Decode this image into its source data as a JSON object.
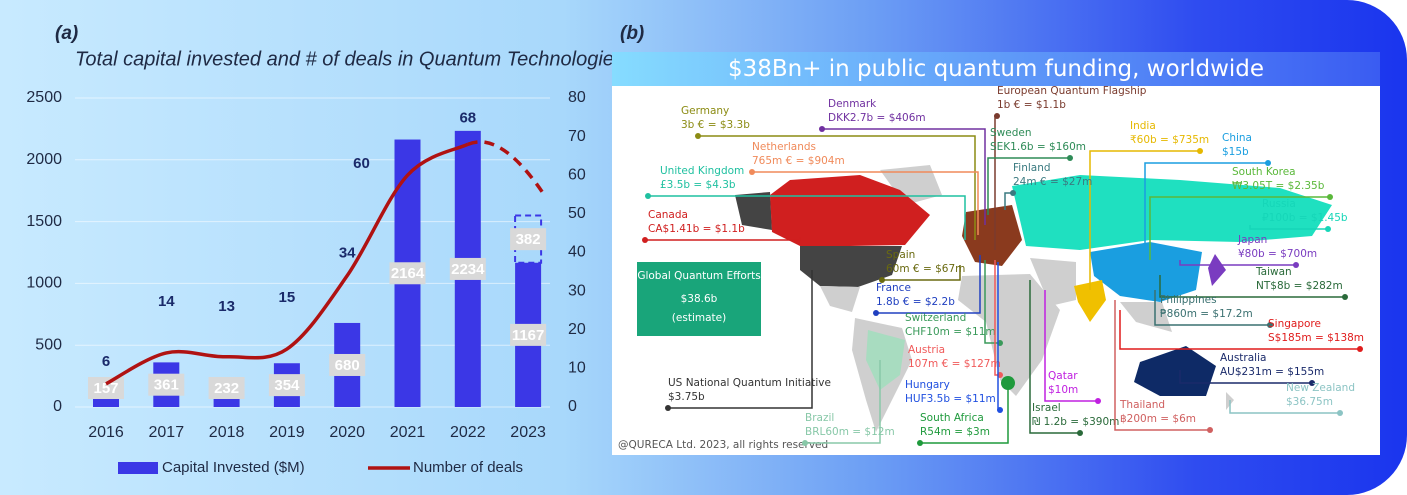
{
  "panel_a": {
    "label": "(a)",
    "chart_data": {
      "type": "bar_line",
      "title": "Total capital invested and # of deals in Quantum Technologies.",
      "categories": [
        "2016",
        "2017",
        "2018",
        "2019",
        "2020",
        "2021",
        "2022",
        "2023"
      ],
      "series": [
        {
          "name": "Capital Invested ($M)",
          "color": "#3b37e6",
          "values": [
            157,
            361,
            232,
            354,
            680,
            2164,
            2234,
            1167
          ],
          "projected_values": [
            null,
            null,
            null,
            null,
            null,
            null,
            null,
            382
          ]
        },
        {
          "name": "Number of deals",
          "color": "#b01212",
          "axis": "y2",
          "values": [
            6,
            14,
            13,
            15,
            34,
            60,
            68,
            56
          ],
          "value_labels": [
            "6",
            "14",
            "13",
            "15",
            "34",
            "60",
            "68",
            null
          ],
          "dashed_after": "2022"
        }
      ],
      "ylim": [
        0,
        2500
      ],
      "yticks": [
        0,
        500,
        1000,
        1500,
        2000,
        2500
      ],
      "y2lim": [
        0,
        80
      ],
      "y2ticks": [
        0,
        10,
        20,
        30,
        40,
        50,
        60,
        70,
        80
      ],
      "grid": true,
      "legend": "bottom"
    }
  },
  "panel_b": {
    "label": "(b)",
    "title": "$38Bn+ in public quantum funding, worldwide",
    "summary": {
      "label": "Global Quantum Efforts",
      "value": "$38.6b",
      "note": "(estimate)"
    },
    "funding": [
      {
        "name": "Germany",
        "amount": "3b € = $3.3b",
        "color": "#8c8c14"
      },
      {
        "name": "Denmark",
        "amount": "DKK2.7b = $406m",
        "color": "#7030a0"
      },
      {
        "name": "European Quantum Flagship",
        "amount": "1b € = $1.1b",
        "color": "#7a3b2e"
      },
      {
        "name": "Netherlands",
        "amount": "765m € = $904m",
        "color": "#f08a5a"
      },
      {
        "name": "Sweden",
        "amount": "SEK1.6b = $160m",
        "color": "#2e8b57"
      },
      {
        "name": "India",
        "amount": "₹60b = $735m",
        "color": "#e6b800"
      },
      {
        "name": "China",
        "amount": "$15b",
        "color": "#1a9ee0"
      },
      {
        "name": "United Kingdom",
        "amount": "£3.5b = $4.3b",
        "color": "#1fc0a0"
      },
      {
        "name": "Finland",
        "amount": "24m € = $27m",
        "color": "#3a7a80"
      },
      {
        "name": "South Korea",
        "amount": "₩3.05T = $2.35b",
        "color": "#5ab83a"
      },
      {
        "name": "Canada",
        "amount": "CA$1.41b = $1.1b",
        "color": "#d01f1f"
      },
      {
        "name": "Russia",
        "amount": "₽100b = $1.45b",
        "color": "#16d6b8"
      },
      {
        "name": "Spain",
        "amount": "60m € = $67m",
        "color": "#6a6a10"
      },
      {
        "name": "Japan",
        "amount": "¥80b = $700m",
        "color": "#7a3cc0"
      },
      {
        "name": "Taiwan",
        "amount": "NT$8b = $282m",
        "color": "#2a6a3a"
      },
      {
        "name": "France",
        "amount": "1.8b € = $2.2b",
        "color": "#2040c0"
      },
      {
        "name": "Philippines",
        "amount": "₱860m = $17.2m",
        "color": "#3a7070"
      },
      {
        "name": "Switzerland",
        "amount": "CHF10m = $11m",
        "color": "#3a9a5a"
      },
      {
        "name": "Singapore",
        "amount": "S$185m = $138m",
        "color": "#e01c1c"
      },
      {
        "name": "Austria",
        "amount": "107m € = $127m",
        "color": "#f05a5a"
      },
      {
        "name": "Australia",
        "amount": "AU$231m = $155m",
        "color": "#1a2a6a"
      },
      {
        "name": "Hungary",
        "amount": "HUF3.5b = $11m",
        "color": "#2050e0"
      },
      {
        "name": "Qatar",
        "amount": "$10m",
        "color": "#c020e0"
      },
      {
        "name": "US National Quantum Initiative",
        "amount": "$3.75b",
        "color": "#333333"
      },
      {
        "name": "New Zealand",
        "amount": "$36.75m",
        "color": "#8cc4c4"
      },
      {
        "name": "Brazil",
        "amount": "BRL60m = $12m",
        "color": "#88c8a8"
      },
      {
        "name": "South Africa",
        "amount": "R54m = $3m",
        "color": "#1f9a3c"
      },
      {
        "name": "Israel",
        "amount": "₪ 1.2b = $390m",
        "color": "#2a6a3a"
      },
      {
        "name": "Thailand",
        "amount": "฿200m = $6m",
        "color": "#d06060"
      }
    ],
    "credit": "@QURECA Ltd. 2023, all rights reserved"
  }
}
